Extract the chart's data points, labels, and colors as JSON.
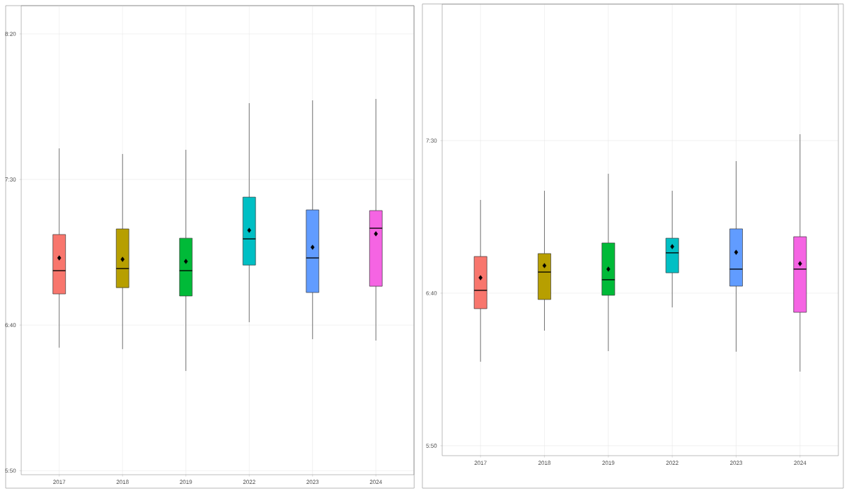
{
  "chart_data": [
    {
      "type": "box",
      "categories": [
        "2017",
        "2018",
        "2019",
        "2022",
        "2023",
        "2024"
      ],
      "boxes": [
        {
          "low": 6.537,
          "q1": 6.845,
          "median": 6.978,
          "q3": 7.185,
          "high": 7.678,
          "mean": 7.051
        },
        {
          "low": 6.529,
          "q1": 6.881,
          "median": 6.99,
          "q3": 7.217,
          "high": 7.646,
          "mean": 7.043
        },
        {
          "low": 6.404,
          "q1": 6.833,
          "median": 6.978,
          "q3": 7.164,
          "high": 7.67,
          "mean": 7.031
        },
        {
          "low": 6.683,
          "q1": 7.01,
          "median": 7.16,
          "q3": 7.399,
          "high": 7.937,
          "mean": 7.209
        },
        {
          "low": 6.586,
          "q1": 6.853,
          "median": 7.051,
          "q3": 7.326,
          "high": 7.953,
          "mean": 7.112
        },
        {
          "low": 6.578,
          "q1": 6.889,
          "median": 7.221,
          "q3": 7.322,
          "high": 7.961,
          "mean": 7.189
        }
      ],
      "colors": [
        "#f8766d",
        "#b79f00",
        "#00ba38",
        "#00bfc4",
        "#619cff",
        "#f564e3"
      ],
      "ylim": [
        5.81,
        8.495
      ],
      "yticks": [
        {
          "value": 5.8333,
          "label": "5:50"
        },
        {
          "value": 6.6667,
          "label": "6:40"
        },
        {
          "value": 7.5,
          "label": "7:30"
        },
        {
          "value": 8.3333,
          "label": "8:20"
        }
      ],
      "grid": true
    },
    {
      "type": "box",
      "categories": [
        "2017",
        "2018",
        "2019",
        "2022",
        "2023",
        "2024"
      ],
      "boxes": [
        {
          "low": 6.292,
          "q1": 6.582,
          "median": 6.682,
          "q3": 6.867,
          "high": 7.176,
          "mean": 6.751
        },
        {
          "low": 6.462,
          "q1": 6.632,
          "median": 6.782,
          "q3": 6.883,
          "high": 7.226,
          "mean": 6.817
        },
        {
          "low": 6.35,
          "q1": 6.655,
          "median": 6.74,
          "q3": 6.941,
          "high": 7.319,
          "mean": 6.798
        },
        {
          "low": 6.589,
          "q1": 6.778,
          "median": 6.887,
          "q3": 6.967,
          "high": 7.226,
          "mean": 6.921
        },
        {
          "low": 6.347,
          "q1": 6.705,
          "median": 6.798,
          "q3": 7.018,
          "high": 7.388,
          "mean": 6.89
        },
        {
          "low": 6.238,
          "q1": 6.562,
          "median": 6.798,
          "q3": 6.975,
          "high": 7.535,
          "mean": 6.828
        }
      ],
      "colors": [
        "#f8766d",
        "#b79f00",
        "#00ba38",
        "#00bfc4",
        "#619cff",
        "#f564e3"
      ],
      "ylim": [
        5.779,
        8.245
      ],
      "yticks": [
        {
          "value": 5.8333,
          "label": "5:50"
        },
        {
          "value": 6.6667,
          "label": "6:40"
        },
        {
          "value": 7.5,
          "label": "7:30"
        }
      ],
      "grid": true
    }
  ]
}
